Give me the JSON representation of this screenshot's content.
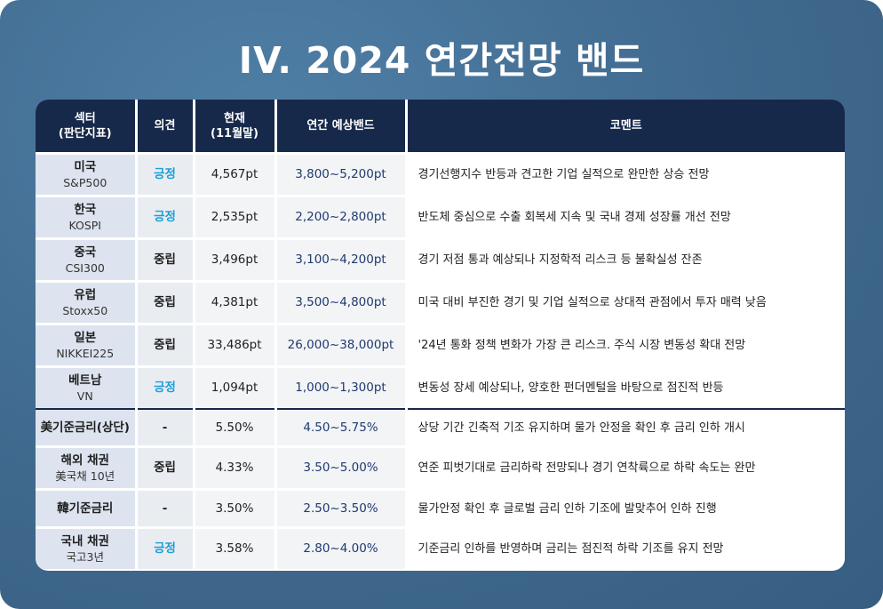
{
  "title": "IV. 2024 연간전망 밴드",
  "headers": {
    "sector_line1": "섹터",
    "sector_line2": "(판단지표)",
    "opinion": "의견",
    "current_line1": "현재",
    "current_line2": "(11월말)",
    "band": "연간 예상밴드",
    "comment": "코멘트"
  },
  "rows": [
    {
      "name": "미국",
      "sub": "S&P500",
      "opinion": "긍정",
      "current": "4,567pt",
      "band": "3,800~5,200pt",
      "comment": "경기선행지수 반등과 견고한 기업 실적으로 완만한 상승 전망"
    },
    {
      "name": "한국",
      "sub": "KOSPI",
      "opinion": "긍정",
      "current": "2,535pt",
      "band": "2,200~2,800pt",
      "comment": "반도체 중심으로 수출 회복세 지속 및 국내 경제 성장률 개선 전망"
    },
    {
      "name": "중국",
      "sub": "CSI300",
      "opinion": "중립",
      "current": "3,496pt",
      "band": "3,100~4,200pt",
      "comment": "경기 저점 통과 예상되나 지정학적 리스크 등 불확실성 잔존"
    },
    {
      "name": "유럽",
      "sub": "Stoxx50",
      "opinion": "중립",
      "current": "4,381pt",
      "band": "3,500~4,800pt",
      "comment": "미국 대비 부진한 경기 및 기업 실적으로 상대적 관점에서 투자 매력 낮음"
    },
    {
      "name": "일본",
      "sub": "NIKKEI225",
      "opinion": "중립",
      "current": "33,486pt",
      "band": "26,000~38,000pt",
      "comment": "'24년 통화 정책 변화가 가장 큰 리스크. 주식 시장 변동성 확대 전망"
    },
    {
      "name": "베트남",
      "sub": "VN",
      "opinion": "긍정",
      "current": "1,094pt",
      "band": "1,000~1,300pt",
      "comment": "변동성 장세 예상되나, 양호한 펀더멘털을 바탕으로 점진적 반등"
    },
    {
      "name": "美기준금리(상단)",
      "sub": "",
      "opinion": "-",
      "current": "5.50%",
      "band": "4.50~5.75%",
      "comment": "상당 기간 긴축적 기조 유지하며 물가 안정을 확인 후 금리 인하 개시"
    },
    {
      "name": "해외 채권",
      "sub": "美국채 10년",
      "opinion": "중립",
      "current": "4.33%",
      "band": "3.50~5.00%",
      "comment": "연준 피벗기대로 금리하락 전망되나 경기 연착륙으로 하락 속도는 완만"
    },
    {
      "name": "韓기준금리",
      "sub": "",
      "opinion": "-",
      "current": "3.50%",
      "band": "2.50~3.50%",
      "comment": "물가안정 확인 후 글로벌 금리 인하 기조에 발맞추어 인하 진행"
    },
    {
      "name": "국내 채권",
      "sub": "국고3년",
      "opinion": "긍정",
      "current": "3.58%",
      "band": "2.80~4.00%",
      "comment": "기준금리 인하를 반영하며 금리는 점진적 하락 기조를 유지 전망"
    }
  ],
  "colors": {
    "positive": "#1ea0d8",
    "header_bg": "#17294a",
    "background": "#40698e"
  }
}
